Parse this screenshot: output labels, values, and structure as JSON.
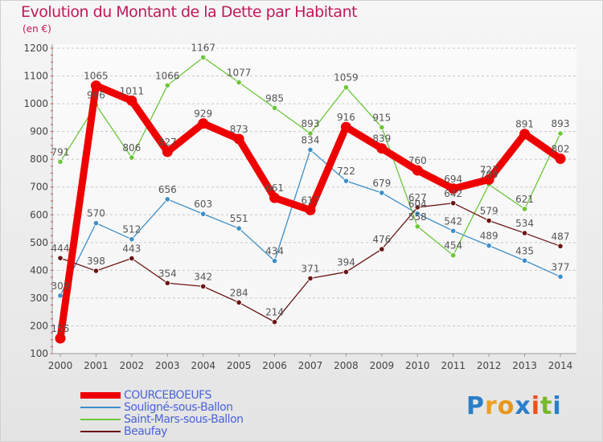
{
  "header": {
    "title": "Evolution du Montant de la Dette par Habitant",
    "subtitle": "(en €)"
  },
  "brand": {
    "letters": [
      "P",
      "r",
      "o",
      "x",
      "i",
      "t",
      "i"
    ],
    "colors": [
      "#2a7fc9",
      "#f0a020",
      "#e8961a",
      "#2a7fc9",
      "#e8531e",
      "#78b828",
      "#2a7fc9"
    ]
  },
  "chart_data": {
    "type": "line",
    "title": "Evolution du Montant de la Dette par Habitant",
    "subtitle": "(en €)",
    "xlabel": "",
    "ylabel": "",
    "x": [
      "2000",
      "2001",
      "2002",
      "2003",
      "2004",
      "2005",
      "2006",
      "2007",
      "2008",
      "2009",
      "2010",
      "2011",
      "2012",
      "2013",
      "2014"
    ],
    "yticks": [
      100,
      200,
      300,
      400,
      500,
      600,
      700,
      800,
      900,
      1000,
      1100,
      1200
    ],
    "ylim": [
      100,
      1200
    ],
    "grid": "horizontal dashed",
    "legend_position": "bottom-left",
    "series": [
      {
        "name": "COURCEBOEUFS",
        "color": "#ee0000",
        "emphasis": "bold",
        "values": [
          155,
          1065,
          1011,
          827,
          929,
          873,
          661,
          617,
          916,
          839,
          760,
          694,
          727,
          891,
          802
        ],
        "labels": [
          "155",
          "1065",
          "1011",
          "827",
          "929",
          "873",
          "661",
          "617",
          "916",
          "839",
          "760",
          "694",
          "727",
          "891",
          "802"
        ]
      },
      {
        "name": "Souligné-sous-Ballon",
        "color": "#3d8ec9",
        "values": [
          309,
          570,
          512,
          656,
          603,
          551,
          434,
          834,
          722,
          679,
          604,
          542,
          489,
          435,
          377
        ],
        "labels": [
          "309",
          "570",
          "512",
          "656",
          "603",
          "551",
          "434",
          "834",
          "722",
          "679",
          "604",
          "542",
          "489",
          "435",
          "377"
        ]
      },
      {
        "name": "Saint-Mars-sous-Ballon",
        "color": "#6cc63a",
        "values": [
          791,
          996,
          806,
          1066,
          1167,
          1077,
          985,
          893,
          1059,
          915,
          558,
          454,
          709,
          621,
          893
        ],
        "labels": [
          "791",
          "996",
          "806",
          "1066",
          "1167",
          "1077",
          "985",
          "893",
          "1059",
          "915",
          "558",
          "454",
          "709",
          "621",
          "893"
        ]
      },
      {
        "name": "Beaufay",
        "color": "#6b1414",
        "values": [
          444,
          398,
          443,
          354,
          342,
          284,
          214,
          371,
          394,
          476,
          627,
          642,
          579,
          534,
          487
        ],
        "labels": [
          "444",
          "398",
          "443",
          "354",
          "342",
          "284",
          "214",
          "371",
          "394",
          "476",
          "627",
          "642",
          "579",
          "534",
          "487"
        ]
      }
    ]
  }
}
